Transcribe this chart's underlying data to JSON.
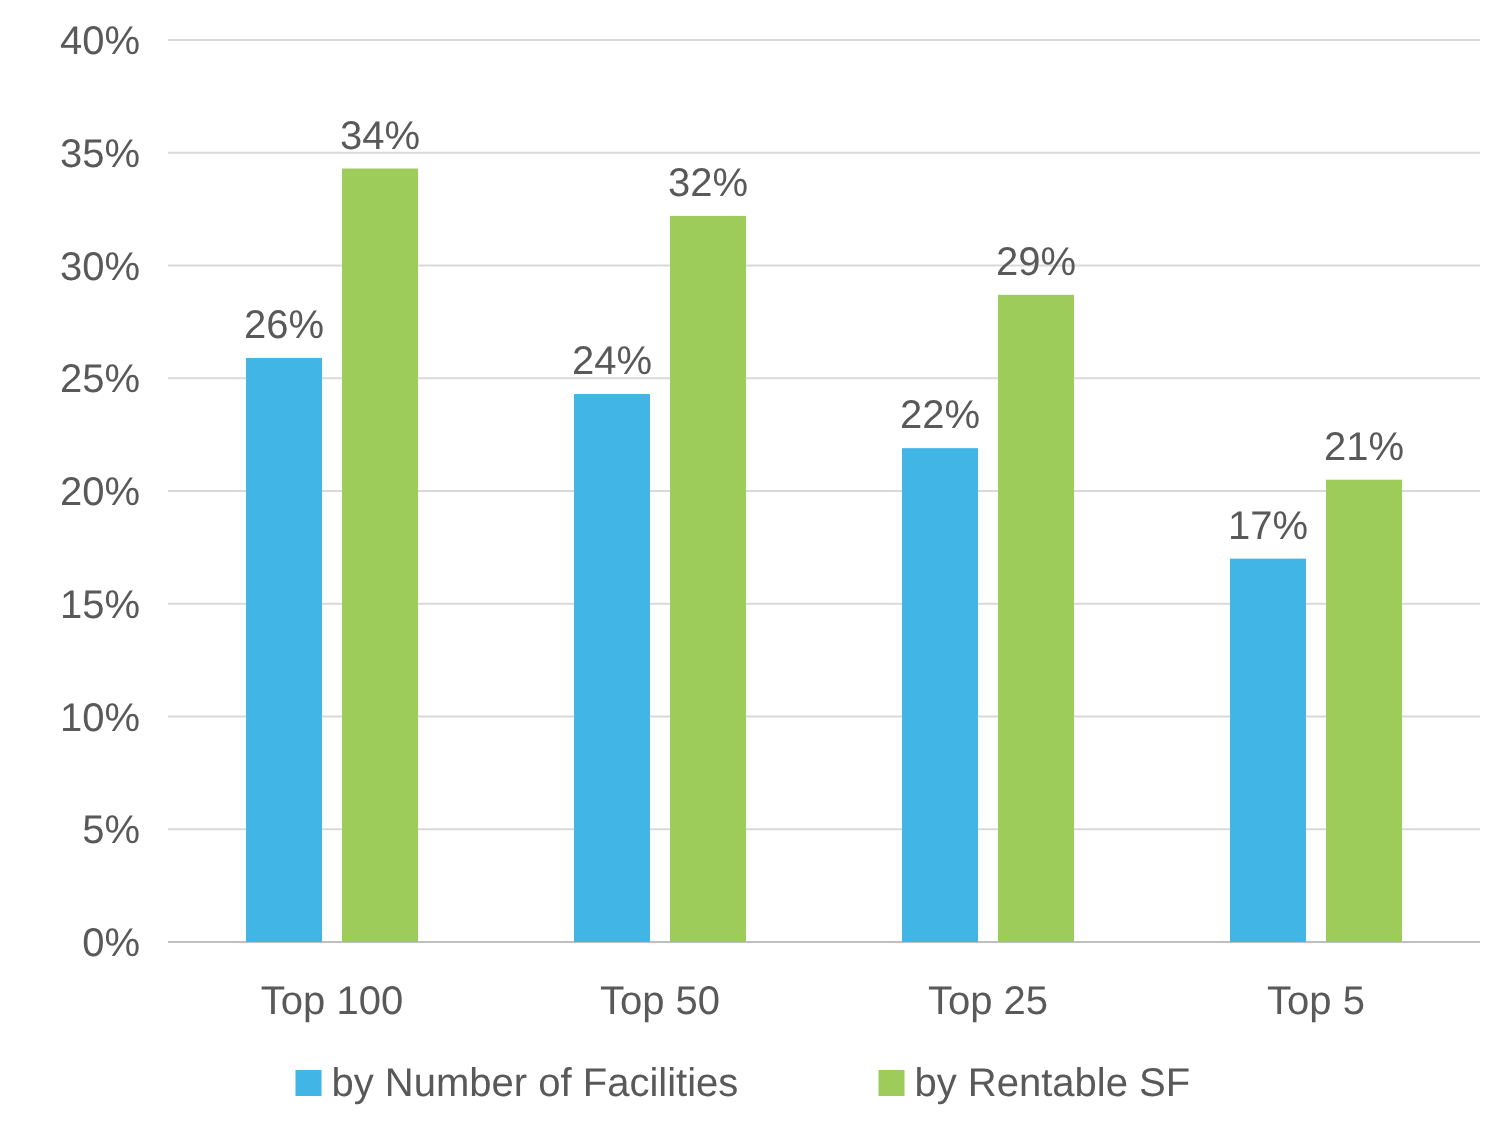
{
  "chart_data": {
    "type": "bar",
    "categories": [
      "Top 100",
      "Top 50",
      "Top 25",
      "Top 5"
    ],
    "series": [
      {
        "name": "by Number of Facilities",
        "color": "#41b6e6",
        "values": [
          25.9,
          24.3,
          21.9,
          17.0
        ],
        "value_labels": [
          "26%",
          "24%",
          "22%",
          "17%"
        ]
      },
      {
        "name": "by Rentable SF",
        "color": "#9dcc5a",
        "values": [
          34.3,
          32.2,
          28.7,
          20.5
        ],
        "value_labels": [
          "34%",
          "32%",
          "29%",
          "21%"
        ]
      }
    ],
    "ylim": [
      0,
      40
    ],
    "yticks": [
      {
        "value": 0,
        "label": "0%"
      },
      {
        "value": 5,
        "label": "5%"
      },
      {
        "value": 10,
        "label": "10%"
      },
      {
        "value": 15,
        "label": "15%"
      },
      {
        "value": 20,
        "label": "20%"
      },
      {
        "value": 25,
        "label": "25%"
      },
      {
        "value": 30,
        "label": "30%"
      },
      {
        "value": 35,
        "label": "35%"
      },
      {
        "value": 40,
        "label": "40%"
      }
    ],
    "grid": "y",
    "legend": "bottom"
  }
}
